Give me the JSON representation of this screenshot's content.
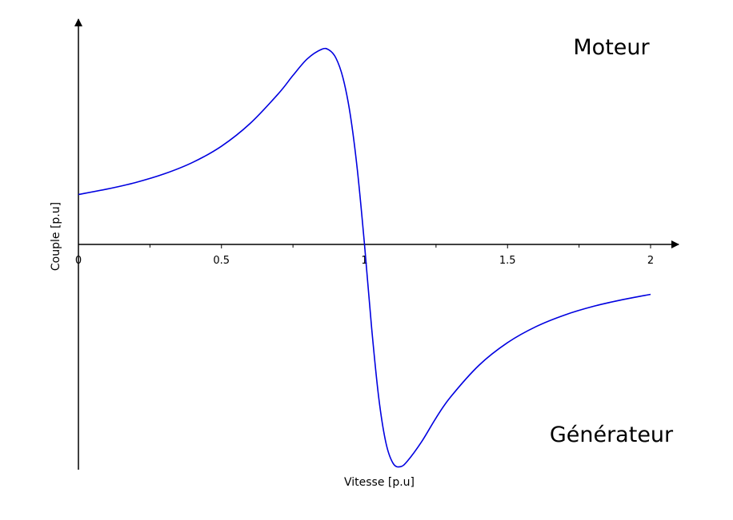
{
  "chart_data": {
    "type": "line",
    "title": "",
    "xlabel": "Vitesse [p.u]",
    "ylabel": "Couple [p.u]",
    "xlim": [
      0,
      2.1
    ],
    "ylim": [
      -1.0,
      0.85
    ],
    "x_ticks": [
      0,
      0.5,
      1,
      1.5,
      2
    ],
    "x_tick_labels": [
      "0",
      "0.5",
      "1",
      "1.5",
      "2"
    ],
    "grid": false,
    "annotations": {
      "motor": "Moteur",
      "generator": "Générateur"
    },
    "series": [
      {
        "color": "#0000e0",
        "x": [
          0,
          0.1,
          0.2,
          0.3,
          0.4,
          0.5,
          0.6,
          0.7,
          0.75,
          0.8,
          0.85,
          0.875,
          0.9,
          0.925,
          0.95,
          0.975,
          1.0,
          1.025,
          1.05,
          1.075,
          1.1,
          1.125,
          1.15,
          1.2,
          1.25,
          1.3,
          1.4,
          1.5,
          1.6,
          1.7,
          1.8,
          1.9,
          2.0
        ],
        "y": [
          0.22,
          0.244,
          0.273,
          0.311,
          0.362,
          0.433,
          0.533,
          0.666,
          0.745,
          0.818,
          0.86,
          0.858,
          0.822,
          0.733,
          0.574,
          0.329,
          0.0,
          -0.369,
          -0.678,
          -0.875,
          -0.965,
          -0.98,
          -0.955,
          -0.869,
          -0.765,
          -0.674,
          -0.533,
          -0.433,
          -0.362,
          -0.311,
          -0.273,
          -0.244,
          -0.22
        ]
      }
    ]
  }
}
